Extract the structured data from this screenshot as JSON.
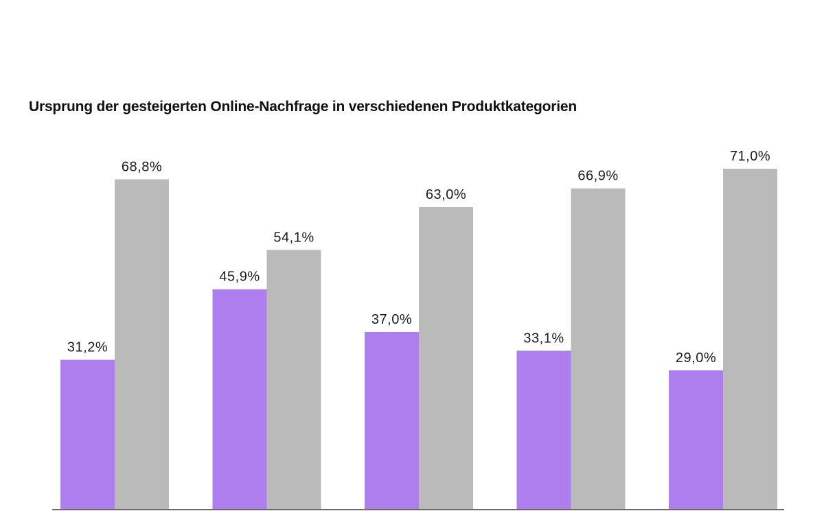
{
  "chart_data": {
    "type": "bar",
    "title": "Ursprung der gesteigerten Online-Nachfrage in verschiedenen Produktkategorien",
    "xlabel": "",
    "ylabel": "",
    "categories": [
      "",
      "",
      "",
      "",
      ""
    ],
    "ylim": [
      0,
      100
    ],
    "grid": false,
    "series": [
      {
        "values": [
          31.2,
          45.9,
          37.0,
          33.1,
          29.0
        ],
        "labels": [
          "31,2%",
          "45,9%",
          "37,0%",
          "33,1%",
          "29,0%"
        ],
        "color": "#ae7eee"
      },
      {
        "values": [
          68.8,
          54.1,
          63.0,
          66.9,
          71.0
        ],
        "labels": [
          "68,8%",
          "54,1%",
          "63,0%",
          "66,9%",
          "71,0%"
        ],
        "color": "#bababa"
      }
    ],
    "axis_color": "#6b6b6b"
  }
}
